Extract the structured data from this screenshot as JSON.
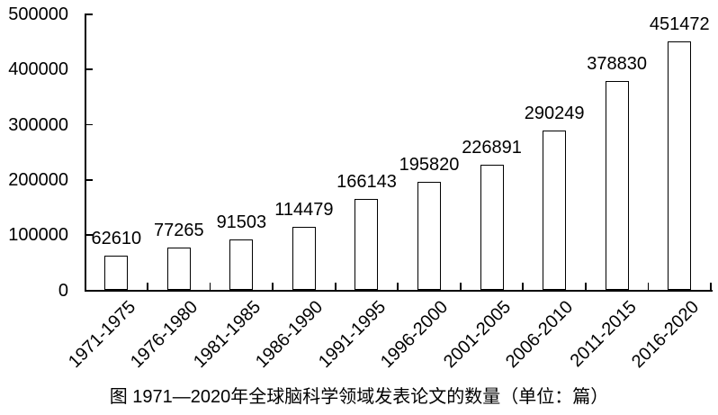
{
  "colors": {
    "background": "#ffffff",
    "bar_fill": "#ffffff",
    "bar_border": "#000000",
    "axis": "#000000",
    "text": "#000000"
  },
  "chart_data": {
    "type": "bar",
    "title": "",
    "caption": "图  1971—2020年全球脑科学领域发表论文的数量（单位：篇）",
    "categories": [
      "1971-1975",
      "1976-1980",
      "1981-1985",
      "1986-1990",
      "1991-1995",
      "1996-2000",
      "2001-2005",
      "2006-2010",
      "2011-2015",
      "2016-2020"
    ],
    "values": [
      62610,
      77265,
      91503,
      114479,
      166143,
      195820,
      226891,
      290249,
      378830,
      451472
    ],
    "xlabel": "",
    "ylabel": "",
    "ylim": [
      0,
      500000
    ],
    "yticks": [
      0,
      100000,
      200000,
      300000,
      400000,
      500000
    ],
    "grid": false,
    "legend": "none",
    "bar_label_position": "above-bar",
    "x_tick_label_rotation_deg": 45,
    "tick_style": "inside"
  }
}
